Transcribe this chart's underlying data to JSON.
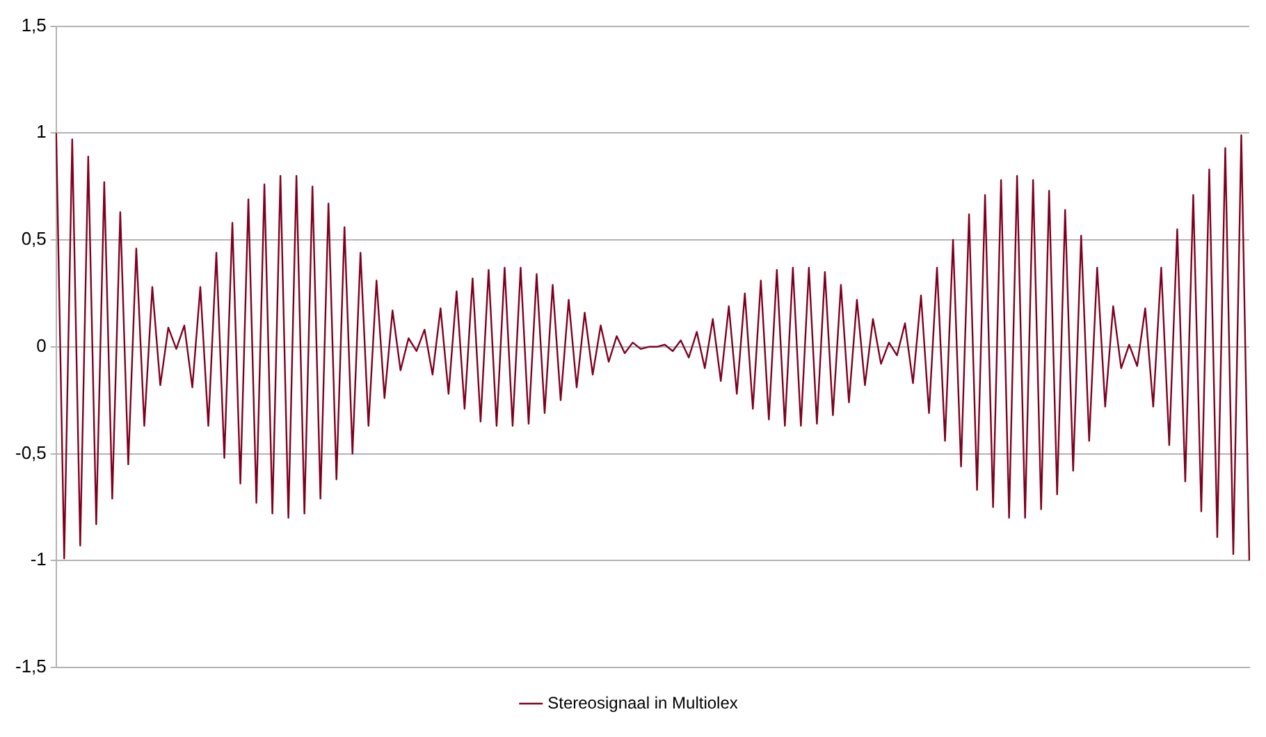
{
  "chart_data": {
    "type": "line",
    "categories": [
      null,
      null,
      null,
      null,
      null,
      null,
      null,
      null,
      null,
      null,
      null,
      null,
      null,
      null,
      null,
      null,
      null,
      null,
      null,
      null,
      null,
      null,
      null,
      null,
      null,
      null,
      null,
      null,
      null,
      null,
      null,
      null,
      null,
      null,
      null,
      null,
      null,
      null,
      null,
      null,
      null,
      null,
      null,
      null,
      null,
      null,
      null,
      null,
      null,
      null,
      null,
      null,
      null,
      null,
      null,
      null,
      null,
      null,
      null,
      null,
      null,
      null,
      null,
      null,
      null,
      null,
      null,
      null,
      null,
      null,
      null,
      null,
      null,
      null,
      null,
      null,
      null,
      null,
      null,
      null,
      null,
      null,
      null,
      null,
      null,
      null,
      null,
      null,
      null,
      null,
      null,
      null,
      null,
      null,
      null,
      null,
      null,
      null,
      null,
      null,
      null,
      null,
      null,
      null,
      null,
      null,
      null,
      null,
      null,
      null,
      null,
      null,
      null,
      null,
      null,
      null,
      null,
      null,
      null,
      null,
      null,
      null,
      null,
      null,
      null,
      null,
      null,
      null,
      null,
      null,
      null,
      null,
      null,
      null,
      null,
      null,
      null,
      null,
      null,
      null,
      null,
      null,
      null,
      null,
      null,
      null,
      null,
      null,
      null,
      null
    ],
    "series": [
      {
        "name": "Stereosignaal in Multiolex",
        "color": "#7e0021",
        "values": [
          1,
          -0.99,
          0.97,
          -0.93,
          0.89,
          -0.83,
          0.77,
          -0.71,
          0.63,
          -0.55,
          0.46,
          -0.37,
          0.28,
          -0.18,
          0.09,
          -0.01,
          0.1,
          -0.19,
          0.28,
          -0.37,
          0.44,
          -0.52,
          0.58,
          -0.64,
          0.69,
          -0.73,
          0.76,
          -0.78,
          0.8,
          -0.8,
          0.8,
          -0.78,
          0.75,
          -0.71,
          0.67,
          -0.62,
          0.56,
          -0.5,
          0.44,
          -0.37,
          0.31,
          -0.24,
          0.17,
          -0.11,
          0.04,
          -0.02,
          0.08,
          -0.13,
          0.18,
          -0.22,
          0.26,
          -0.29,
          0.32,
          -0.35,
          0.36,
          -0.37,
          0.37,
          -0.37,
          0.37,
          -0.36,
          0.34,
          -0.31,
          0.29,
          -0.25,
          0.22,
          -0.19,
          0.16,
          -0.13,
          0.1,
          -0.07,
          0.05,
          -0.03,
          0.02,
          -0.01,
          0,
          0,
          0.01,
          -0.02,
          0.03,
          -0.05,
          0.07,
          -0.1,
          0.13,
          -0.16,
          0.19,
          -0.22,
          0.25,
          -0.29,
          0.31,
          -0.34,
          0.36,
          -0.37,
          0.37,
          -0.37,
          0.37,
          -0.36,
          0.35,
          -0.32,
          0.29,
          -0.26,
          0.22,
          -0.18,
          0.13,
          -0.08,
          0.02,
          -0.04,
          0.11,
          -0.17,
          0.24,
          -0.31,
          0.37,
          -0.44,
          0.5,
          -0.56,
          0.62,
          -0.67,
          0.71,
          -0.75,
          0.78,
          -0.8,
          0.8,
          -0.8,
          0.78,
          -0.76,
          0.73,
          -0.69,
          0.64,
          -0.58,
          0.52,
          -0.44,
          0.37,
          -0.28,
          0.19,
          -0.1,
          0.01,
          -0.09,
          0.18,
          -0.28,
          0.37,
          -0.46,
          0.55,
          -0.63,
          0.71,
          -0.77,
          0.83,
          -0.89,
          0.93,
          -0.97,
          0.99,
          -1
        ]
      }
    ],
    "ylim": [
      -1.5,
      1.5
    ],
    "yticks": [
      {
        "value": -1.5,
        "label": "-1,5"
      },
      {
        "value": -1,
        "label": "-1"
      },
      {
        "value": -0.5,
        "label": "-0,5"
      },
      {
        "value": 0,
        "label": "0"
      },
      {
        "value": 0.5,
        "label": "0,5"
      },
      {
        "value": 1,
        "label": "1"
      },
      {
        "value": 1.5,
        "label": "1,5"
      }
    ],
    "grid": "y",
    "legend": "bottom",
    "tick_labels": "y",
    "marker": "none"
  }
}
